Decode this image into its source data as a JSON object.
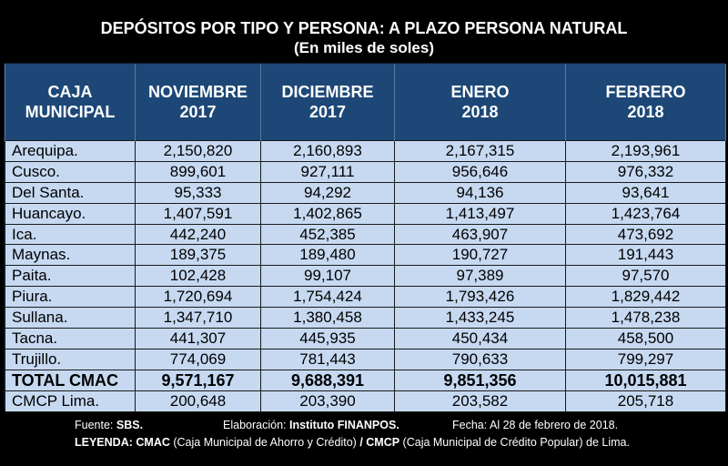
{
  "title": {
    "line1": "DEPÓSITOS POR TIPO Y PERSONA: A PLAZO PERSONA NATURAL",
    "line2": "(En miles de soles)"
  },
  "table": {
    "headers": [
      {
        "line1": "CAJA",
        "line2": "MUNICIPAL"
      },
      {
        "line1": "NOVIEMBRE",
        "line2": "2017"
      },
      {
        "line1": "DICIEMBRE",
        "line2": "2017"
      },
      {
        "line1": "ENERO",
        "line2": "2018"
      },
      {
        "line1": "FEBRERO",
        "line2": "2018"
      }
    ],
    "rows": [
      {
        "name": "Arequipa.",
        "values": [
          "2,150,820",
          "2,160,893",
          "2,167,315",
          "2,193,961"
        ]
      },
      {
        "name": "Cusco.",
        "values": [
          "899,601",
          "927,111",
          "956,646",
          "976,332"
        ]
      },
      {
        "name": "Del Santa.",
        "values": [
          "95,333",
          "94,292",
          "94,136",
          "93,641"
        ]
      },
      {
        "name": "Huancayo.",
        "values": [
          "1,407,591",
          "1,402,865",
          "1,413,497",
          "1,423,764"
        ]
      },
      {
        "name": "Ica.",
        "values": [
          "442,240",
          "452,385",
          "463,907",
          "473,692"
        ]
      },
      {
        "name": "Maynas.",
        "values": [
          "189,375",
          "189,480",
          "190,727",
          "191,443"
        ]
      },
      {
        "name": "Paita.",
        "values": [
          "102,428",
          "99,107",
          "97,389",
          "97,570"
        ]
      },
      {
        "name": "Piura.",
        "values": [
          "1,720,694",
          "1,754,424",
          "1,793,426",
          "1,829,442"
        ]
      },
      {
        "name": "Sullana.",
        "values": [
          "1,347,710",
          "1,380,458",
          "1,433,245",
          "1,478,238"
        ]
      },
      {
        "name": "Tacna.",
        "values": [
          "441,307",
          "445,935",
          "450,434",
          "458,500"
        ]
      },
      {
        "name": "Trujillo.",
        "values": [
          "774,069",
          "781,443",
          "790,633",
          "799,297"
        ]
      },
      {
        "name": "TOTAL CMAC",
        "values": [
          "9,571,167",
          "9,688,391",
          "9,851,356",
          "10,015,881"
        ],
        "total": true
      },
      {
        "name": "CMCP Lima.",
        "values": [
          "200,648",
          "203,390",
          "203,582",
          "205,718"
        ]
      }
    ]
  },
  "footer": {
    "fuente_label": "Fuente: ",
    "fuente_value": "SBS.",
    "elaboracion_label": "Elaboración: ",
    "elaboracion_value": "Instituto FINANPOS.",
    "fecha": "Fecha: Al 28 de febrero de 2018.",
    "leyenda_label": "LEYENDA: ",
    "cmac_abbr": "CMAC",
    "cmac_desc": " (Caja Municipal de Ahorro y Crédito) ",
    "sep": "/ ",
    "cmcp_abbr": "CMCP",
    "cmcp_desc": " (Caja Municipal de Crédito Popular) de Lima."
  }
}
